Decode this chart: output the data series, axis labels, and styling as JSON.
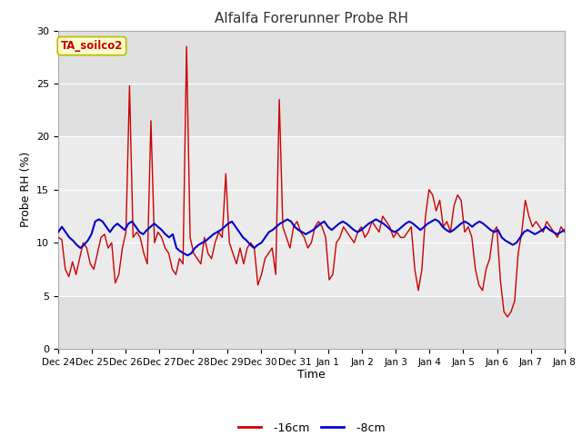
{
  "title": "Alfalfa Forerunner Probe RH",
  "xlabel": "Time",
  "ylabel": "Probe RH (%)",
  "ylim": [
    0,
    30
  ],
  "yticks": [
    0,
    5,
    10,
    15,
    20,
    25,
    30
  ],
  "bg_outer": "#ffffff",
  "bg_plot_dark": "#e0e0e0",
  "bg_plot_light": "#ebebeb",
  "grid_color": "#ffffff",
  "label_box_text": "TA_soilco2",
  "label_box_bg": "#ffffcc",
  "label_box_edge": "#bbbb00",
  "label_box_text_color": "#cc0000",
  "legend_16cm_color": "#cc0000",
  "legend_8cm_color": "#0000cc",
  "xtick_labels": [
    "Dec 24",
    "Dec 25",
    "Dec 26",
    "Dec 27",
    "Dec 28",
    "Dec 29",
    "Dec 30",
    "Dec 31",
    "Jan 1",
    "Jan 2",
    "Jan 3",
    "Jan 4",
    "Jan 5",
    "Jan 6",
    "Jan 7",
    "Jan 8"
  ],
  "red_data": [
    10.5,
    10.3,
    7.5,
    6.8,
    8.2,
    7.0,
    8.5,
    10.0,
    9.5,
    8.0,
    7.5,
    9.0,
    10.5,
    10.8,
    9.5,
    10.0,
    6.2,
    7.0,
    9.5,
    11.0,
    24.8,
    10.5,
    11.0,
    10.5,
    9.0,
    8.0,
    21.5,
    10.0,
    11.0,
    10.5,
    9.5,
    9.0,
    7.5,
    7.0,
    8.5,
    8.0,
    28.5,
    10.5,
    9.0,
    8.5,
    8.0,
    10.5,
    9.0,
    8.5,
    10.0,
    11.0,
    10.5,
    16.5,
    10.0,
    9.0,
    8.0,
    9.5,
    8.0,
    9.5,
    10.0,
    9.5,
    6.0,
    7.0,
    8.5,
    9.0,
    9.5,
    7.0,
    23.5,
    11.5,
    10.5,
    9.5,
    11.5,
    12.0,
    11.0,
    10.5,
    9.5,
    10.0,
    11.5,
    12.0,
    11.5,
    10.5,
    6.5,
    7.0,
    10.0,
    10.5,
    11.5,
    11.0,
    10.5,
    10.0,
    11.0,
    11.5,
    10.5,
    11.0,
    12.0,
    11.5,
    11.0,
    12.5,
    12.0,
    11.5,
    10.5,
    11.0,
    10.5,
    10.5,
    11.0,
    11.5,
    7.5,
    5.5,
    7.5,
    12.5,
    15.0,
    14.5,
    13.0,
    14.0,
    11.5,
    12.0,
    11.0,
    13.5,
    14.5,
    14.0,
    11.0,
    11.5,
    10.5,
    7.5,
    6.0,
    5.5,
    7.5,
    8.5,
    11.0,
    11.5,
    6.5,
    3.5,
    3.0,
    3.5,
    4.5,
    9.0,
    11.0,
    14.0,
    12.5,
    11.5,
    12.0,
    11.5,
    11.0,
    12.0,
    11.5,
    11.0,
    10.5,
    11.5,
    11.0
  ],
  "blue_data": [
    11.0,
    11.5,
    11.0,
    10.5,
    10.2,
    9.8,
    9.5,
    9.8,
    10.2,
    10.8,
    12.0,
    12.2,
    12.0,
    11.5,
    11.0,
    11.5,
    11.8,
    11.5,
    11.2,
    11.8,
    12.0,
    11.5,
    11.0,
    10.8,
    11.2,
    11.5,
    11.8,
    11.5,
    11.2,
    10.8,
    10.5,
    10.8,
    9.5,
    9.2,
    9.0,
    8.8,
    9.0,
    9.5,
    9.8,
    10.0,
    10.2,
    10.5,
    10.8,
    11.0,
    11.2,
    11.5,
    11.8,
    12.0,
    11.5,
    11.0,
    10.5,
    10.2,
    9.8,
    9.5,
    9.8,
    10.0,
    10.5,
    11.0,
    11.2,
    11.5,
    11.8,
    12.0,
    12.2,
    12.0,
    11.5,
    11.2,
    11.0,
    10.8,
    11.0,
    11.2,
    11.5,
    11.8,
    12.0,
    11.5,
    11.2,
    11.5,
    11.8,
    12.0,
    11.8,
    11.5,
    11.2,
    11.0,
    11.2,
    11.5,
    11.8,
    12.0,
    12.2,
    12.0,
    11.8,
    11.5,
    11.2,
    11.0,
    11.2,
    11.5,
    11.8,
    12.0,
    11.8,
    11.5,
    11.2,
    11.5,
    11.8,
    12.0,
    12.2,
    12.0,
    11.5,
    11.2,
    11.0,
    11.2,
    11.5,
    11.8,
    12.0,
    11.8,
    11.5,
    11.8,
    12.0,
    11.8,
    11.5,
    11.2,
    11.0,
    11.2,
    10.5,
    10.2,
    10.0,
    9.8,
    10.0,
    10.5,
    11.0,
    11.2,
    11.0,
    10.8,
    11.0,
    11.2,
    11.5,
    11.2,
    11.0,
    10.8,
    11.0,
    11.2
  ]
}
